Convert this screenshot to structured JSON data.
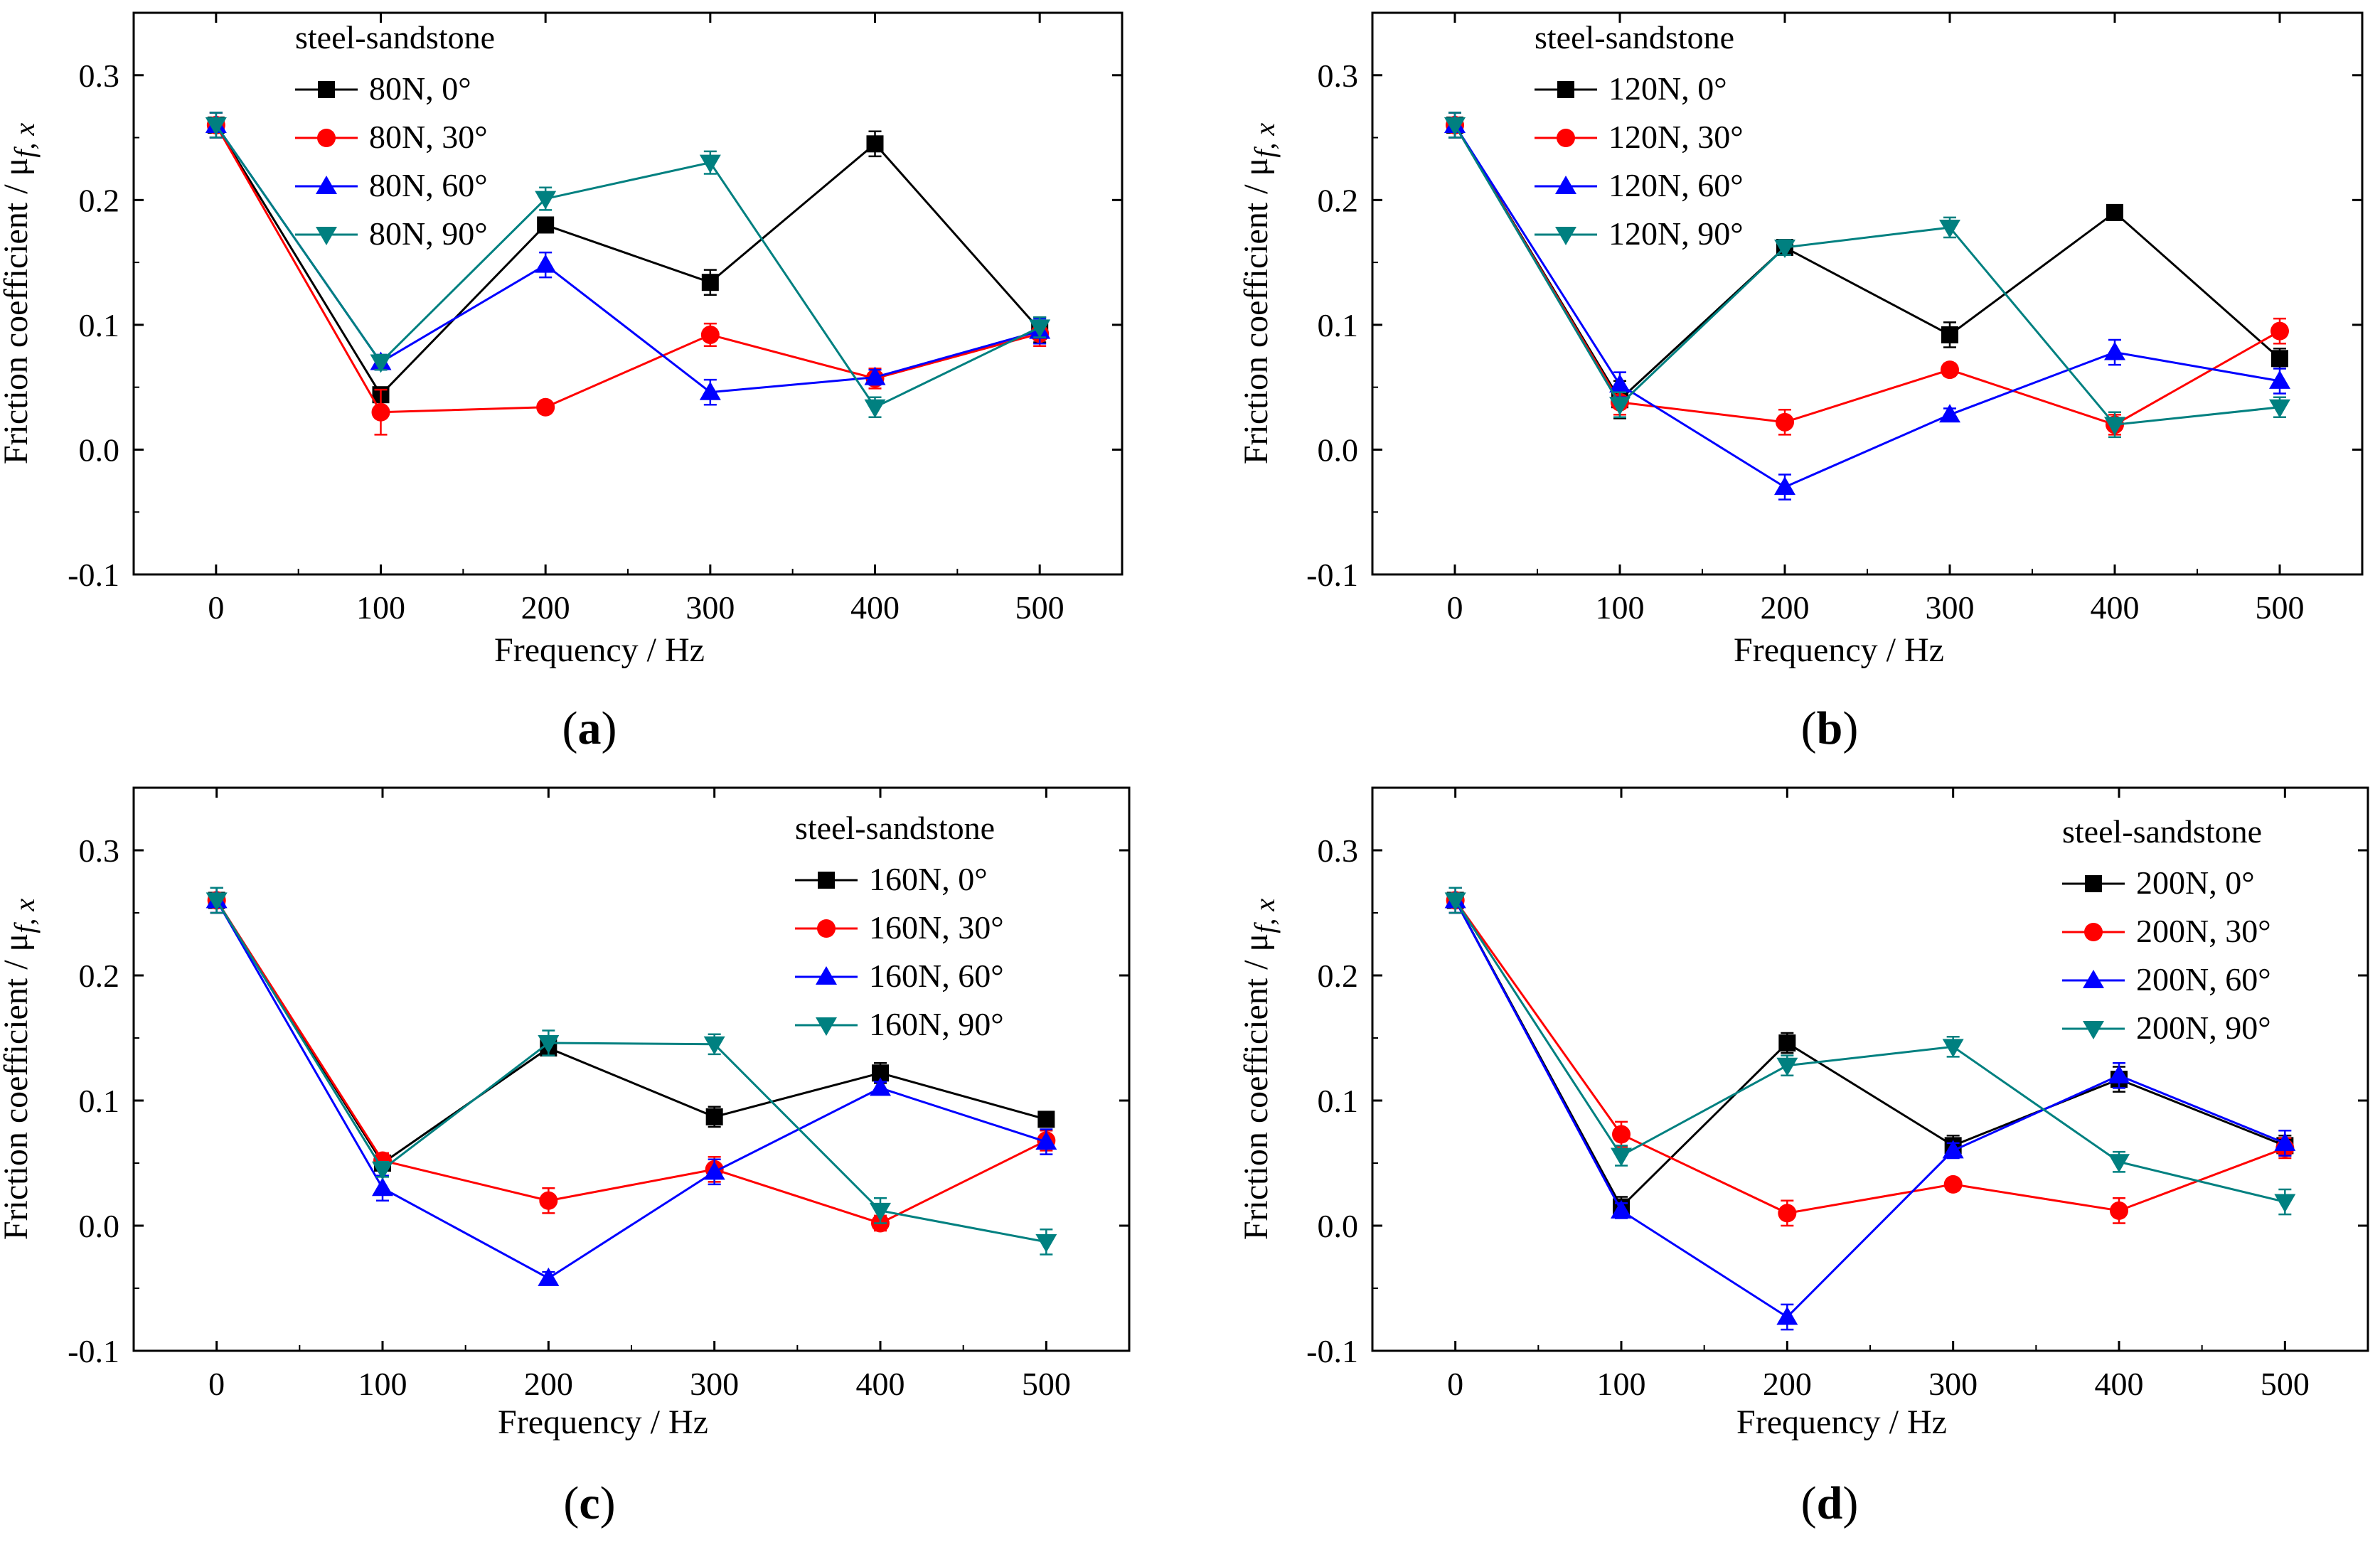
{
  "figure": {
    "colors": {
      "0deg": "#000000",
      "30deg": "#ff0000",
      "60deg": "#0000ff",
      "90deg": "#008080"
    },
    "markers": {
      "0deg": "square",
      "30deg": "circle",
      "60deg": "triangle-up",
      "90deg": "triangle-down"
    }
  },
  "chart_data": [
    {
      "type": "line",
      "panel_label": "(a)",
      "legend_title": "steel-sandstone",
      "legend_position": "top-left",
      "xlabel": "Frequency / Hz",
      "ylabel_main": "Friction coefficient / μ",
      "ylabel_sub": "f, x",
      "xlim": [
        -50,
        550
      ],
      "ylim": [
        -0.1,
        0.35
      ],
      "xticks": [
        0,
        100,
        200,
        300,
        400,
        500
      ],
      "xtick_labels": [
        "0",
        "100",
        "200",
        "300",
        "400",
        "500"
      ],
      "yticks": [
        -0.1,
        0.0,
        0.1,
        0.2,
        0.3
      ],
      "ytick_labels": [
        "-0.1",
        "0.0",
        "0.1",
        "0.2",
        "0.3"
      ],
      "x": [
        0,
        100,
        200,
        300,
        400,
        500
      ],
      "series": [
        {
          "name": "80N, 0°",
          "key": "0deg",
          "values": [
            0.26,
            0.044,
            0.18,
            0.134,
            0.245,
            0.096
          ],
          "errors": [
            0.01,
            0.005,
            0.006,
            0.01,
            0.01,
            0.01
          ]
        },
        {
          "name": "80N, 30°",
          "key": "30deg",
          "values": [
            0.26,
            0.03,
            0.034,
            0.092,
            0.057,
            0.093
          ],
          "errors": [
            0.01,
            0.018,
            0.004,
            0.009,
            0.008,
            0.01
          ]
        },
        {
          "name": "80N, 60°",
          "key": "60deg",
          "values": [
            0.26,
            0.07,
            0.148,
            0.046,
            0.058,
            0.095
          ],
          "errors": [
            0.01,
            0.006,
            0.01,
            0.01,
            0.006,
            0.01
          ]
        },
        {
          "name": "80N, 90°",
          "key": "90deg",
          "values": [
            0.26,
            0.07,
            0.201,
            0.23,
            0.034,
            0.098
          ],
          "errors": [
            0.01,
            0.006,
            0.009,
            0.009,
            0.008,
            0.008
          ]
        }
      ]
    },
    {
      "type": "line",
      "panel_label": "(b)",
      "legend_title": "steel-sandstone",
      "legend_position": "top-left",
      "xlabel": "Frequency / Hz",
      "ylabel_main": "Friction coefficient / μ",
      "ylabel_sub": "f, x",
      "xlim": [
        -50,
        550
      ],
      "ylim": [
        -0.1,
        0.35
      ],
      "xticks": [
        0,
        100,
        200,
        300,
        400,
        500
      ],
      "xtick_labels": [
        "0",
        "100",
        "200",
        "300",
        "400",
        "500"
      ],
      "yticks": [
        -0.1,
        0.0,
        0.1,
        0.2,
        0.3
      ],
      "ytick_labels": [
        "-0.1",
        "0.0",
        "0.1",
        "0.2",
        "0.3"
      ],
      "x": [
        0,
        100,
        200,
        300,
        400,
        500
      ],
      "series": [
        {
          "name": "120N, 0°",
          "key": "0deg",
          "values": [
            0.26,
            0.04,
            0.162,
            0.092,
            0.19,
            0.073
          ],
          "errors": [
            0.01,
            0.015,
            0.006,
            0.01,
            0.005,
            0.008
          ]
        },
        {
          "name": "120N, 30°",
          "key": "30deg",
          "values": [
            0.26,
            0.038,
            0.022,
            0.064,
            0.02,
            0.095
          ],
          "errors": [
            0.01,
            0.01,
            0.01,
            0.005,
            0.008,
            0.01
          ]
        },
        {
          "name": "120N, 60°",
          "key": "60deg",
          "values": [
            0.26,
            0.052,
            -0.03,
            0.028,
            0.078,
            0.055
          ],
          "errors": [
            0.01,
            0.01,
            0.01,
            0.005,
            0.01,
            0.01
          ]
        },
        {
          "name": "120N, 90°",
          "key": "90deg",
          "values": [
            0.26,
            0.036,
            0.162,
            0.178,
            0.02,
            0.034
          ],
          "errors": [
            0.01,
            0.01,
            0.006,
            0.008,
            0.01,
            0.008
          ]
        }
      ]
    },
    {
      "type": "line",
      "panel_label": "(c)",
      "legend_title": "steel-sandstone",
      "legend_position": "top-right",
      "xlabel": "Frequency / Hz",
      "ylabel_main": "Friction coefficient / μ",
      "ylabel_sub": "f, x",
      "xlim": [
        -50,
        550
      ],
      "ylim": [
        -0.1,
        0.35
      ],
      "xticks": [
        0,
        100,
        200,
        300,
        400,
        500
      ],
      "xtick_labels": [
        "0",
        "100",
        "200",
        "300",
        "400",
        "500"
      ],
      "yticks": [
        -0.1,
        0.0,
        0.1,
        0.2,
        0.3
      ],
      "ytick_labels": [
        "-0.1",
        "0.0",
        "0.1",
        "0.2",
        "0.3"
      ],
      "x": [
        0,
        100,
        200,
        300,
        400,
        500
      ],
      "series": [
        {
          "name": "160N, 0°",
          "key": "0deg",
          "values": [
            0.26,
            0.05,
            0.142,
            0.087,
            0.122,
            0.085
          ],
          "errors": [
            0.01,
            0.006,
            0.006,
            0.008,
            0.008,
            0.006
          ]
        },
        {
          "name": "160N, 30°",
          "key": "30deg",
          "values": [
            0.26,
            0.052,
            0.02,
            0.045,
            0.002,
            0.068
          ],
          "errors": [
            0.01,
            0.006,
            0.01,
            0.01,
            0.006,
            0.008
          ]
        },
        {
          "name": "160N, 60°",
          "key": "60deg",
          "values": [
            0.26,
            0.03,
            -0.042,
            0.043,
            0.11,
            0.067
          ],
          "errors": [
            0.01,
            0.01,
            0.005,
            0.01,
            0.005,
            0.01
          ]
        },
        {
          "name": "160N, 90°",
          "key": "90deg",
          "values": [
            0.26,
            0.045,
            0.146,
            0.145,
            0.012,
            -0.013
          ],
          "errors": [
            0.01,
            0.006,
            0.01,
            0.008,
            0.01,
            0.01
          ]
        }
      ]
    },
    {
      "type": "line",
      "panel_label": "(d)",
      "legend_title": "steel-sandstone",
      "legend_position": "top-right",
      "xlabel": "Frequency / Hz",
      "ylabel_main": "Friction coefficient / μ",
      "ylabel_sub": "f, x",
      "xlim": [
        -50,
        550
      ],
      "ylim": [
        -0.1,
        0.35
      ],
      "xticks": [
        0,
        100,
        200,
        300,
        400,
        500
      ],
      "xtick_labels": [
        "0",
        "100",
        "200",
        "300",
        "400",
        "500"
      ],
      "yticks": [
        -0.1,
        0.0,
        0.1,
        0.2,
        0.3
      ],
      "ytick_labels": [
        "-0.1",
        "0.0",
        "0.1",
        "0.2",
        "0.3"
      ],
      "x": [
        0,
        100,
        200,
        300,
        400,
        500
      ],
      "series": [
        {
          "name": "200N, 0°",
          "key": "0deg",
          "values": [
            0.26,
            0.015,
            0.146,
            0.064,
            0.117,
            0.064
          ],
          "errors": [
            0.01,
            0.008,
            0.008,
            0.008,
            0.01,
            0.008
          ]
        },
        {
          "name": "200N, 30°",
          "key": "30deg",
          "values": [
            0.26,
            0.073,
            0.01,
            0.033,
            0.012,
            0.062
          ],
          "errors": [
            0.01,
            0.01,
            0.01,
            0.004,
            0.01,
            0.008
          ]
        },
        {
          "name": "200N, 60°",
          "key": "60deg",
          "values": [
            0.26,
            0.012,
            -0.073,
            0.06,
            0.12,
            0.066
          ],
          "errors": [
            0.01,
            0.006,
            0.01,
            0.006,
            0.01,
            0.01
          ]
        },
        {
          "name": "200N, 90°",
          "key": "90deg",
          "values": [
            0.26,
            0.056,
            0.128,
            0.143,
            0.051,
            0.019
          ],
          "errors": [
            0.01,
            0.008,
            0.008,
            0.008,
            0.008,
            0.01
          ]
        }
      ]
    }
  ]
}
